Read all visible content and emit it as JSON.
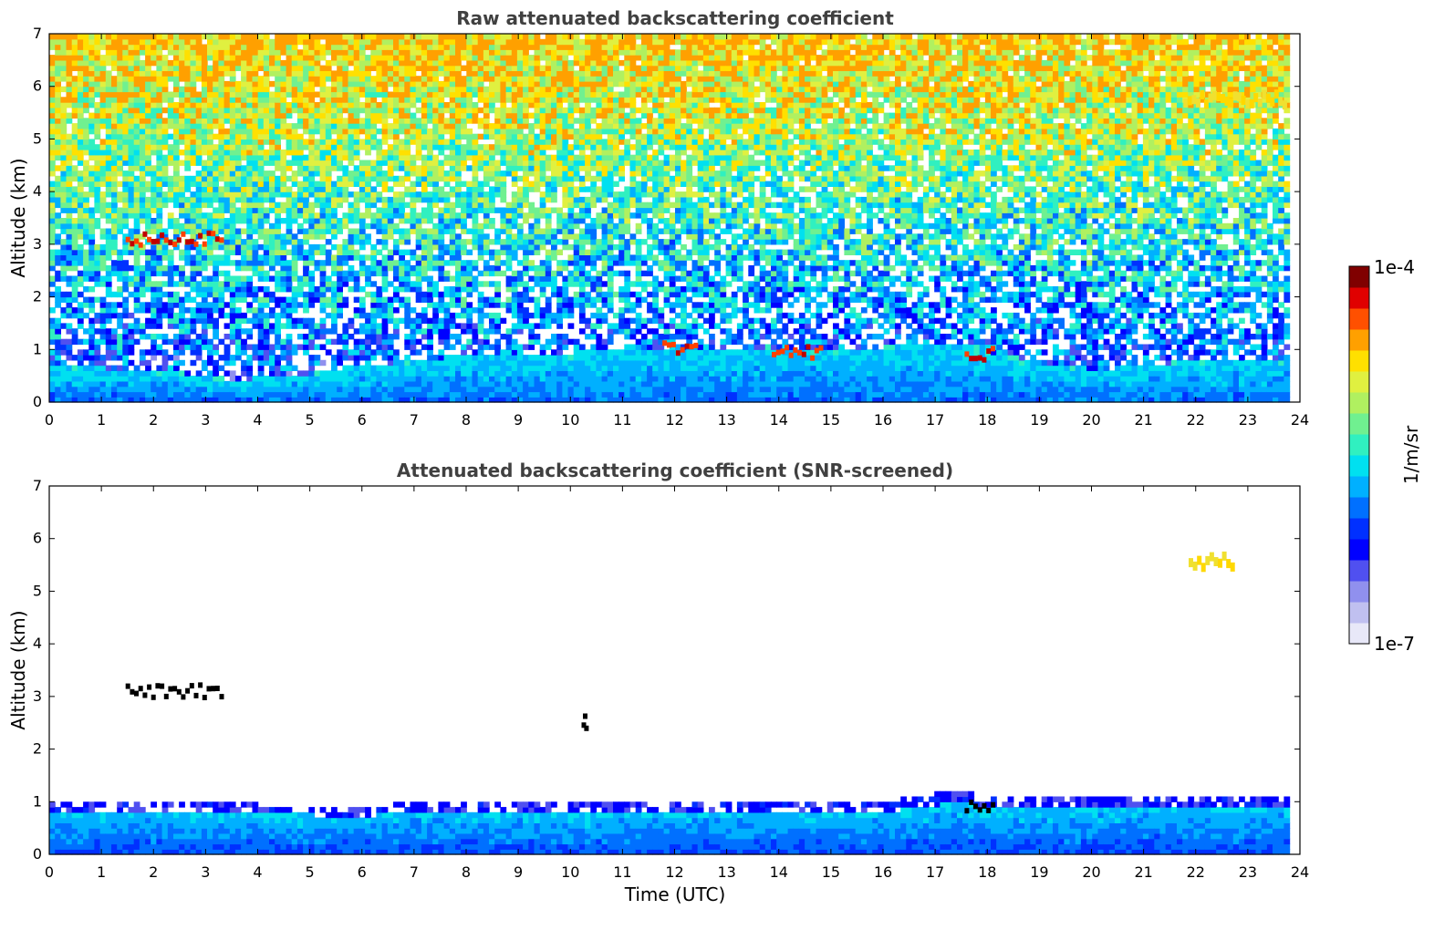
{
  "chart_data": [
    {
      "type": "heatmap",
      "title": "Raw attenuated backscattering coefficient",
      "xlabel": "",
      "ylabel": "Altitude (km)",
      "xlim": [
        0,
        24
      ],
      "ylim": [
        0,
        7
      ],
      "xticks": [
        "0",
        "1",
        "2",
        "3",
        "4",
        "5",
        "6",
        "7",
        "8",
        "9",
        "10",
        "11",
        "12",
        "13",
        "14",
        "15",
        "16",
        "17",
        "18",
        "19",
        "20",
        "21",
        "22",
        "23",
        "24"
      ],
      "yticks": [
        "0",
        "1",
        "2",
        "3",
        "4",
        "5",
        "6",
        "7"
      ],
      "data_end_time": 23.8,
      "boundary_layer_top_km": [
        [
          0,
          0.65
        ],
        [
          1,
          0.6
        ],
        [
          2,
          0.55
        ],
        [
          3,
          0.45
        ],
        [
          3.5,
          0.35
        ],
        [
          4,
          0.42
        ],
        [
          5,
          0.5
        ],
        [
          6,
          0.65
        ],
        [
          7,
          0.75
        ],
        [
          8,
          0.85
        ],
        [
          10,
          0.9
        ],
        [
          12,
          1.0
        ],
        [
          14,
          1.0
        ],
        [
          16,
          1.0
        ],
        [
          17.5,
          1.1
        ],
        [
          18,
          0.9
        ],
        [
          19,
          0.7
        ],
        [
          20,
          0.55
        ],
        [
          21,
          0.65
        ],
        [
          22,
          0.75
        ],
        [
          23.8,
          0.75
        ]
      ],
      "features": [
        {
          "name": "cloud",
          "t_start": 1.5,
          "t_end": 3.3,
          "altitude_km": 3.1,
          "level": "high"
        },
        {
          "name": "cloud",
          "t_start": 11.8,
          "t_end": 12.4,
          "altitude_km": 1.05,
          "level": "high"
        },
        {
          "name": "cloud",
          "t_start": 13.9,
          "t_end": 14.8,
          "altitude_km": 0.95,
          "level": "high"
        },
        {
          "name": "cloud",
          "t_start": 17.6,
          "t_end": 18.1,
          "altitude_km": 0.9,
          "level": "high"
        },
        {
          "name": "cirrus",
          "t_start": 21.8,
          "t_end": 23.7,
          "altitude_km": 5.8,
          "level": "mid"
        }
      ]
    },
    {
      "type": "heatmap",
      "title": "Attenuated backscattering coefficient (SNR-screened)",
      "xlabel": "Time (UTC)",
      "ylabel": "Altitude (km)",
      "xlim": [
        0,
        24
      ],
      "ylim": [
        0,
        7
      ],
      "xticks": [
        "0",
        "1",
        "2",
        "3",
        "4",
        "5",
        "6",
        "7",
        "8",
        "9",
        "10",
        "11",
        "12",
        "13",
        "14",
        "15",
        "16",
        "17",
        "18",
        "19",
        "20",
        "21",
        "22",
        "23",
        "24"
      ],
      "yticks": [
        "0",
        "1",
        "2",
        "3",
        "4",
        "5",
        "6",
        "7"
      ],
      "data_end_time": 23.8,
      "screened_top_km": [
        [
          0,
          1.0
        ],
        [
          2,
          0.95
        ],
        [
          4,
          0.9
        ],
        [
          6,
          0.85
        ],
        [
          7,
          0.95
        ],
        [
          10,
          0.9
        ],
        [
          12,
          1.0
        ],
        [
          14,
          0.95
        ],
        [
          16,
          0.95
        ],
        [
          17.5,
          1.2
        ],
        [
          18,
          1.0
        ],
        [
          19,
          1.05
        ],
        [
          21,
          1.1
        ],
        [
          22,
          1.1
        ],
        [
          23.8,
          1.1
        ]
      ],
      "features": [
        {
          "name": "cloud",
          "t_start": 1.5,
          "t_end": 3.3,
          "altitude_km": 3.1,
          "level": "saturated"
        },
        {
          "name": "cloud",
          "t_start": 10.25,
          "t_end": 10.3,
          "altitude_km": 2.5,
          "level": "saturated"
        },
        {
          "name": "cloud",
          "t_start": 17.6,
          "t_end": 18.1,
          "altitude_km": 0.9,
          "level": "saturated"
        },
        {
          "name": "cirrus",
          "t_start": 21.9,
          "t_end": 22.7,
          "altitude_km": 5.6,
          "level": "mid"
        }
      ]
    }
  ],
  "colorbar": {
    "label": "1/m/sr",
    "max_label": "1e-4",
    "min_label": "1e-7",
    "colors": [
      "#e8e8f8",
      "#c0c0f0",
      "#9090ee",
      "#5050f0",
      "#0000ff",
      "#0030ff",
      "#0070ff",
      "#00b0ff",
      "#00e0f0",
      "#30f0c0",
      "#70f090",
      "#b0f060",
      "#e0f040",
      "#ffe000",
      "#ffa000",
      "#ff5000",
      "#e00000",
      "#800000"
    ]
  }
}
